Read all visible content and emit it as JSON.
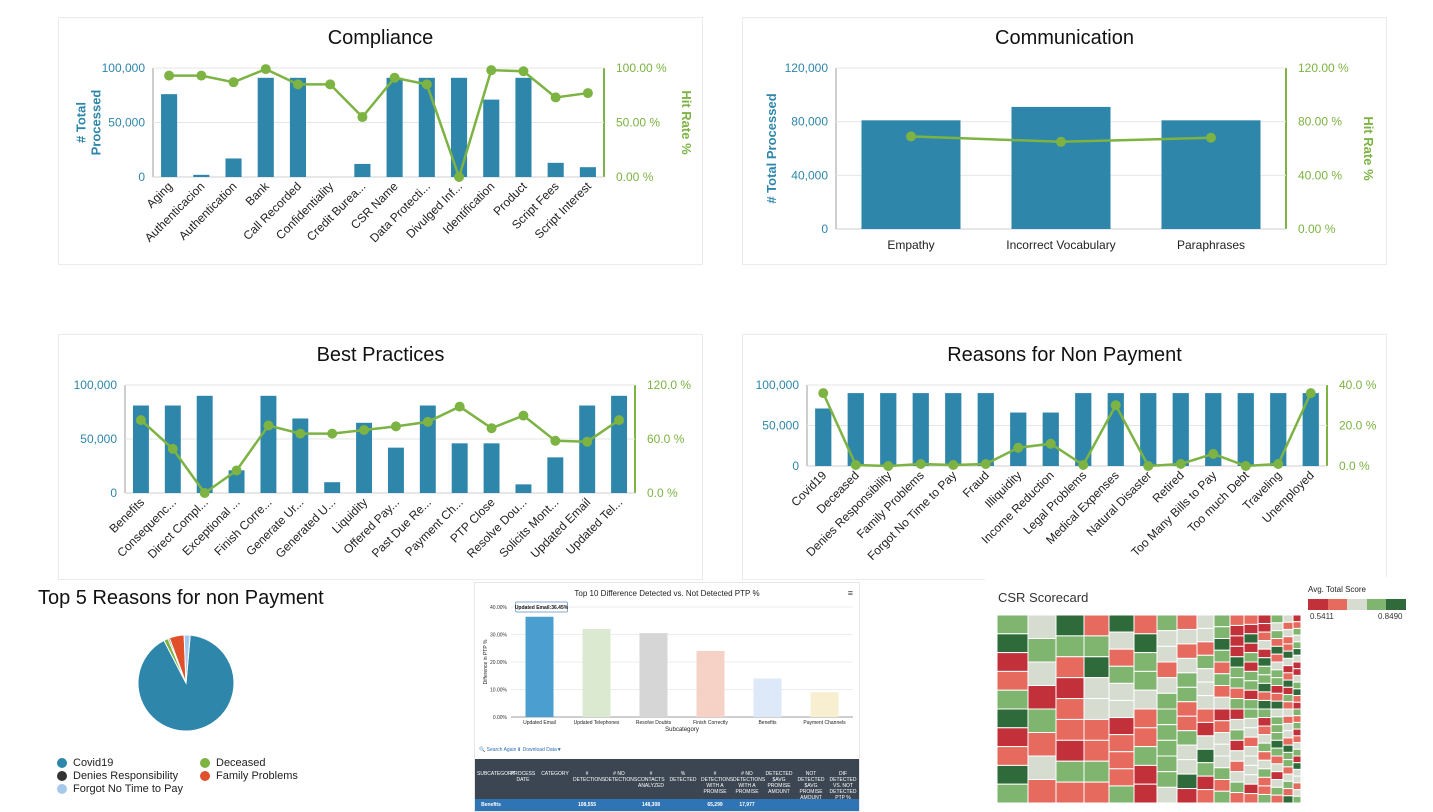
{
  "colors": {
    "bar": "#2e86ab",
    "line": "#7cb342",
    "axis_left": "#2e86ab",
    "axis_right": "#7cb342"
  },
  "chart_data": [
    {
      "type": "bar",
      "title": "Compliance",
      "ylabel": "# Total\nProcessed",
      "y2label": "Hit Rate %",
      "categories": [
        "Aging",
        "Authenticacion",
        "Authentication",
        "Bank",
        "Call Recorded",
        "Confidentiality",
        "Credit Burea...",
        "CSR Name",
        "Data Protecti...",
        "Divulged Inf...",
        "Identification",
        "Product",
        "Script Fees",
        "Script Interest"
      ],
      "series": [
        {
          "axis": "left",
          "values": [
            76000,
            2000,
            17000,
            91000,
            91000,
            0,
            12000,
            91000,
            91000,
            91000,
            71000,
            91000,
            13000,
            9000
          ]
        },
        {
          "axis": "right",
          "values": [
            93,
            93,
            87,
            99,
            85,
            85,
            55,
            91,
            85,
            0,
            98,
            97,
            73,
            77
          ]
        }
      ],
      "yticks": [
        "0",
        "50,000",
        "100,000"
      ],
      "y2ticks": [
        "0.00 %",
        "50.00 %",
        "100.00 %"
      ],
      "ylim": [
        0,
        100000
      ],
      "y2lim": [
        0,
        100
      ]
    },
    {
      "type": "bar",
      "title": "Communication",
      "ylabel": "# Total Processed",
      "y2label": "Hit Rate %",
      "categories": [
        "Empathy",
        "Incorrect Vocabulary",
        "Paraphrases"
      ],
      "series": [
        {
          "axis": "left",
          "values": [
            81000,
            91000,
            81000
          ]
        },
        {
          "axis": "right",
          "values": [
            69,
            65,
            68
          ]
        }
      ],
      "yticks": [
        "0",
        "40,000",
        "80,000",
        "120,000"
      ],
      "y2ticks": [
        "0.00 %",
        "40.00 %",
        "80.00 %",
        "120.00 %"
      ],
      "ylim": [
        0,
        120000
      ],
      "y2lim": [
        0,
        120
      ]
    },
    {
      "type": "bar",
      "title": "Best Practices",
      "categories": [
        "Benefits",
        "Consequenc...",
        "Direct Compl...",
        "Exceptional ...",
        "Finish Corre...",
        "Generate Ur...",
        "Generated U...",
        "Liquidity",
        "Offered Pay...",
        "Past Due Re...",
        "Payment Ch...",
        "PTP Close",
        "Resolve Dou...",
        "Solicits Mont...",
        "Updated Email",
        "Updated Tel..."
      ],
      "series": [
        {
          "axis": "left",
          "values": [
            81000,
            81000,
            90000,
            21000,
            90000,
            69000,
            10000,
            65000,
            42000,
            81000,
            46000,
            46000,
            8000,
            33000,
            81000,
            90000
          ]
        },
        {
          "axis": "right",
          "values": [
            81,
            49,
            0,
            25,
            75,
            66,
            66,
            70,
            74,
            79,
            96,
            72,
            86,
            58,
            57,
            81
          ]
        }
      ],
      "yticks": [
        "0",
        "50,000",
        "100,000"
      ],
      "y2ticks": [
        "0.0 %",
        "60.0 %",
        "120.0 %"
      ],
      "ylim": [
        0,
        100000
      ],
      "y2lim": [
        0,
        120
      ]
    },
    {
      "type": "bar",
      "title": "Reasons for Non Payment",
      "categories": [
        "Covid19",
        "Deceased",
        "Denies Responsibility",
        "Family Problems",
        "Forgot No Time to Pay",
        "Fraud",
        "Illiquidity",
        "Income Reduction",
        "Legal Problems",
        "Medical Expenses",
        "Natural Disaster",
        "Retired",
        "Too Many Bills to Pay",
        "Too much Debt",
        "Traveling",
        "Unemployed"
      ],
      "series": [
        {
          "axis": "left",
          "values": [
            71000,
            90000,
            90000,
            90000,
            90000,
            90000,
            66000,
            66000,
            90000,
            90000,
            90000,
            90000,
            90000,
            90000,
            90000,
            90000
          ]
        },
        {
          "axis": "right",
          "values": [
            36,
            0.5,
            0,
            1,
            0.5,
            1,
            9,
            11,
            0.5,
            30,
            0,
            1,
            6,
            0,
            1,
            36
          ]
        }
      ],
      "yticks": [
        "0",
        "50,000",
        "100,000"
      ],
      "y2ticks": [
        "0.0 %",
        "20.0 %",
        "40.0 %"
      ],
      "ylim": [
        0,
        100000
      ],
      "y2lim": [
        0,
        40
      ]
    },
    {
      "type": "pie",
      "title": "Top 5 Reasons for non Payment",
      "slices": [
        {
          "name": "Covid19",
          "value": 91,
          "color": "#2e86ab"
        },
        {
          "name": "Deceased",
          "value": 1.5,
          "color": "#7cb342"
        },
        {
          "name": "Denies Responsibility",
          "value": 0.5,
          "color": "#333333"
        },
        {
          "name": "Family Problems",
          "value": 5,
          "color": "#e0512b"
        },
        {
          "name": "Forgot No Time to Pay",
          "value": 2,
          "color": "#a6c8ec"
        }
      ]
    },
    {
      "type": "bar",
      "title": "Top 10 Difference Detected vs. Not Detected PTP %",
      "xlabel": "Subcategory",
      "ylabel": "Difference in PTP %",
      "categories": [
        "Updated Email",
        "Updated Telephones",
        "Resolve Doubts",
        "Finish Correctly",
        "Benefits",
        "Payment Channels"
      ],
      "values": [
        36.45,
        32,
        30.5,
        24,
        14,
        9
      ],
      "colors": [
        "#4a9fd0",
        "#dbe9d0",
        "#d6d6d6",
        "#f6d2c6",
        "#dde9f8",
        "#f7efcf"
      ],
      "yticks": [
        "0.00%",
        "10.00%",
        "20.00%",
        "30.00%",
        "40.00%"
      ],
      "ylim": [
        0,
        40
      ],
      "tooltip": "Updated Email:36.45%"
    }
  ],
  "ptp_panel": {
    "links": {
      "search_again": "Search Again",
      "download": "Download Data▼"
    },
    "menu_icon": "hamburger-menu-icon",
    "headers": [
      "SUBCATEGORY",
      "PROCESS DATE",
      "CATEGORY",
      "# DETECTIONS",
      "# NO DETECTIONS",
      "# CONTACTS ANALYZED",
      "% DETECTED",
      "# DETECTIONS WITH A PROMISE",
      "# NO DETECTIONS WITH A PROMISE",
      "DETECTED $AVG PROMISE AMOUNT",
      "NOT DETECTED $AVG PROMISE AMOUNT",
      "DIF DETECTED VS. NOT DETECTED PTP %"
    ],
    "row": [
      "Benefits",
      "",
      "",
      "108,555",
      "",
      "148,308",
      "",
      "65,299",
      "17,977",
      "",
      "",
      ""
    ]
  },
  "scorecard": {
    "title": "CSR Scorecard",
    "legend_title": "Avg. Total Score",
    "min_label": "0.5411",
    "max_label": "0.8490"
  }
}
